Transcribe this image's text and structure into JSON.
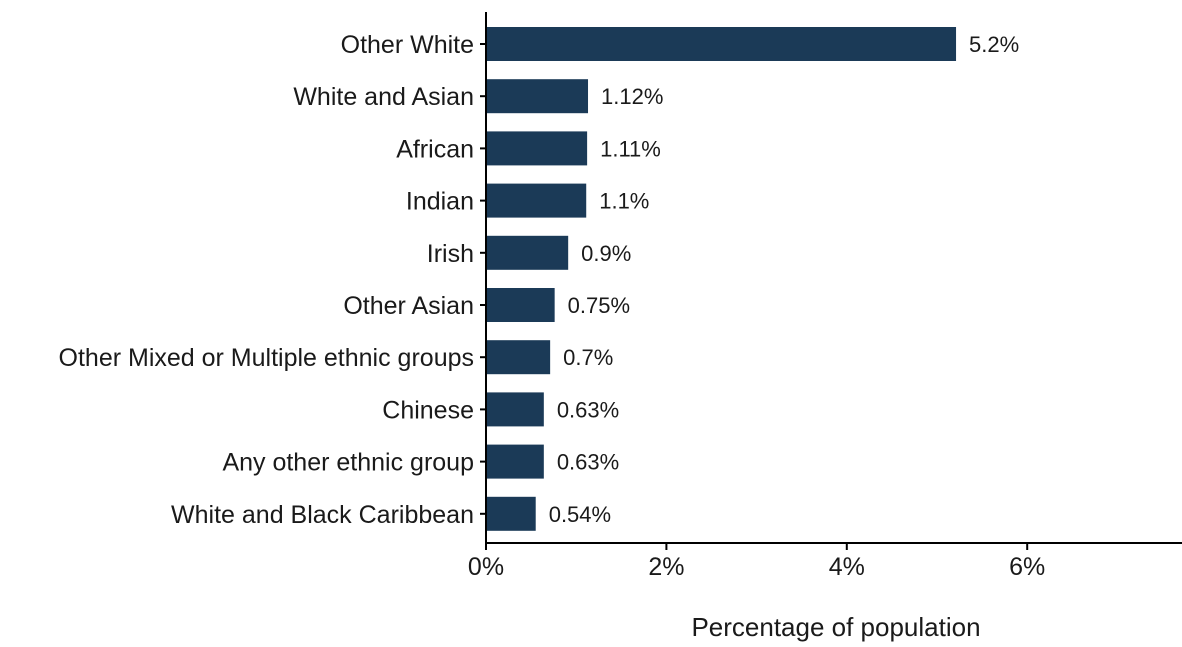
{
  "chart_data": {
    "type": "bar",
    "orientation": "horizontal",
    "categories": [
      "Other White",
      "White and Asian",
      "African",
      "Indian",
      "Irish",
      "Other Asian",
      "Other Mixed or Multiple ethnic groups",
      "Chinese",
      "Any other ethnic group",
      "White and Black Caribbean"
    ],
    "values": [
      5.2,
      1.12,
      1.11,
      1.1,
      0.9,
      0.75,
      0.7,
      0.63,
      0.63,
      0.54
    ],
    "value_labels": [
      "5.2%",
      "1.12%",
      "1.11%",
      "1.1%",
      "0.9%",
      "0.75%",
      "0.7%",
      "0.63%",
      "0.63%",
      "0.54%"
    ],
    "title": "",
    "xlabel": "Percentage of population",
    "ylabel": "",
    "xlim": [
      0,
      7.7
    ],
    "x_ticks": [
      0,
      2,
      4,
      6
    ],
    "x_tick_labels": [
      "0%",
      "2%",
      "4%",
      "6%"
    ],
    "bar_color": "#1b3a57",
    "grid": false,
    "legend": "none"
  }
}
